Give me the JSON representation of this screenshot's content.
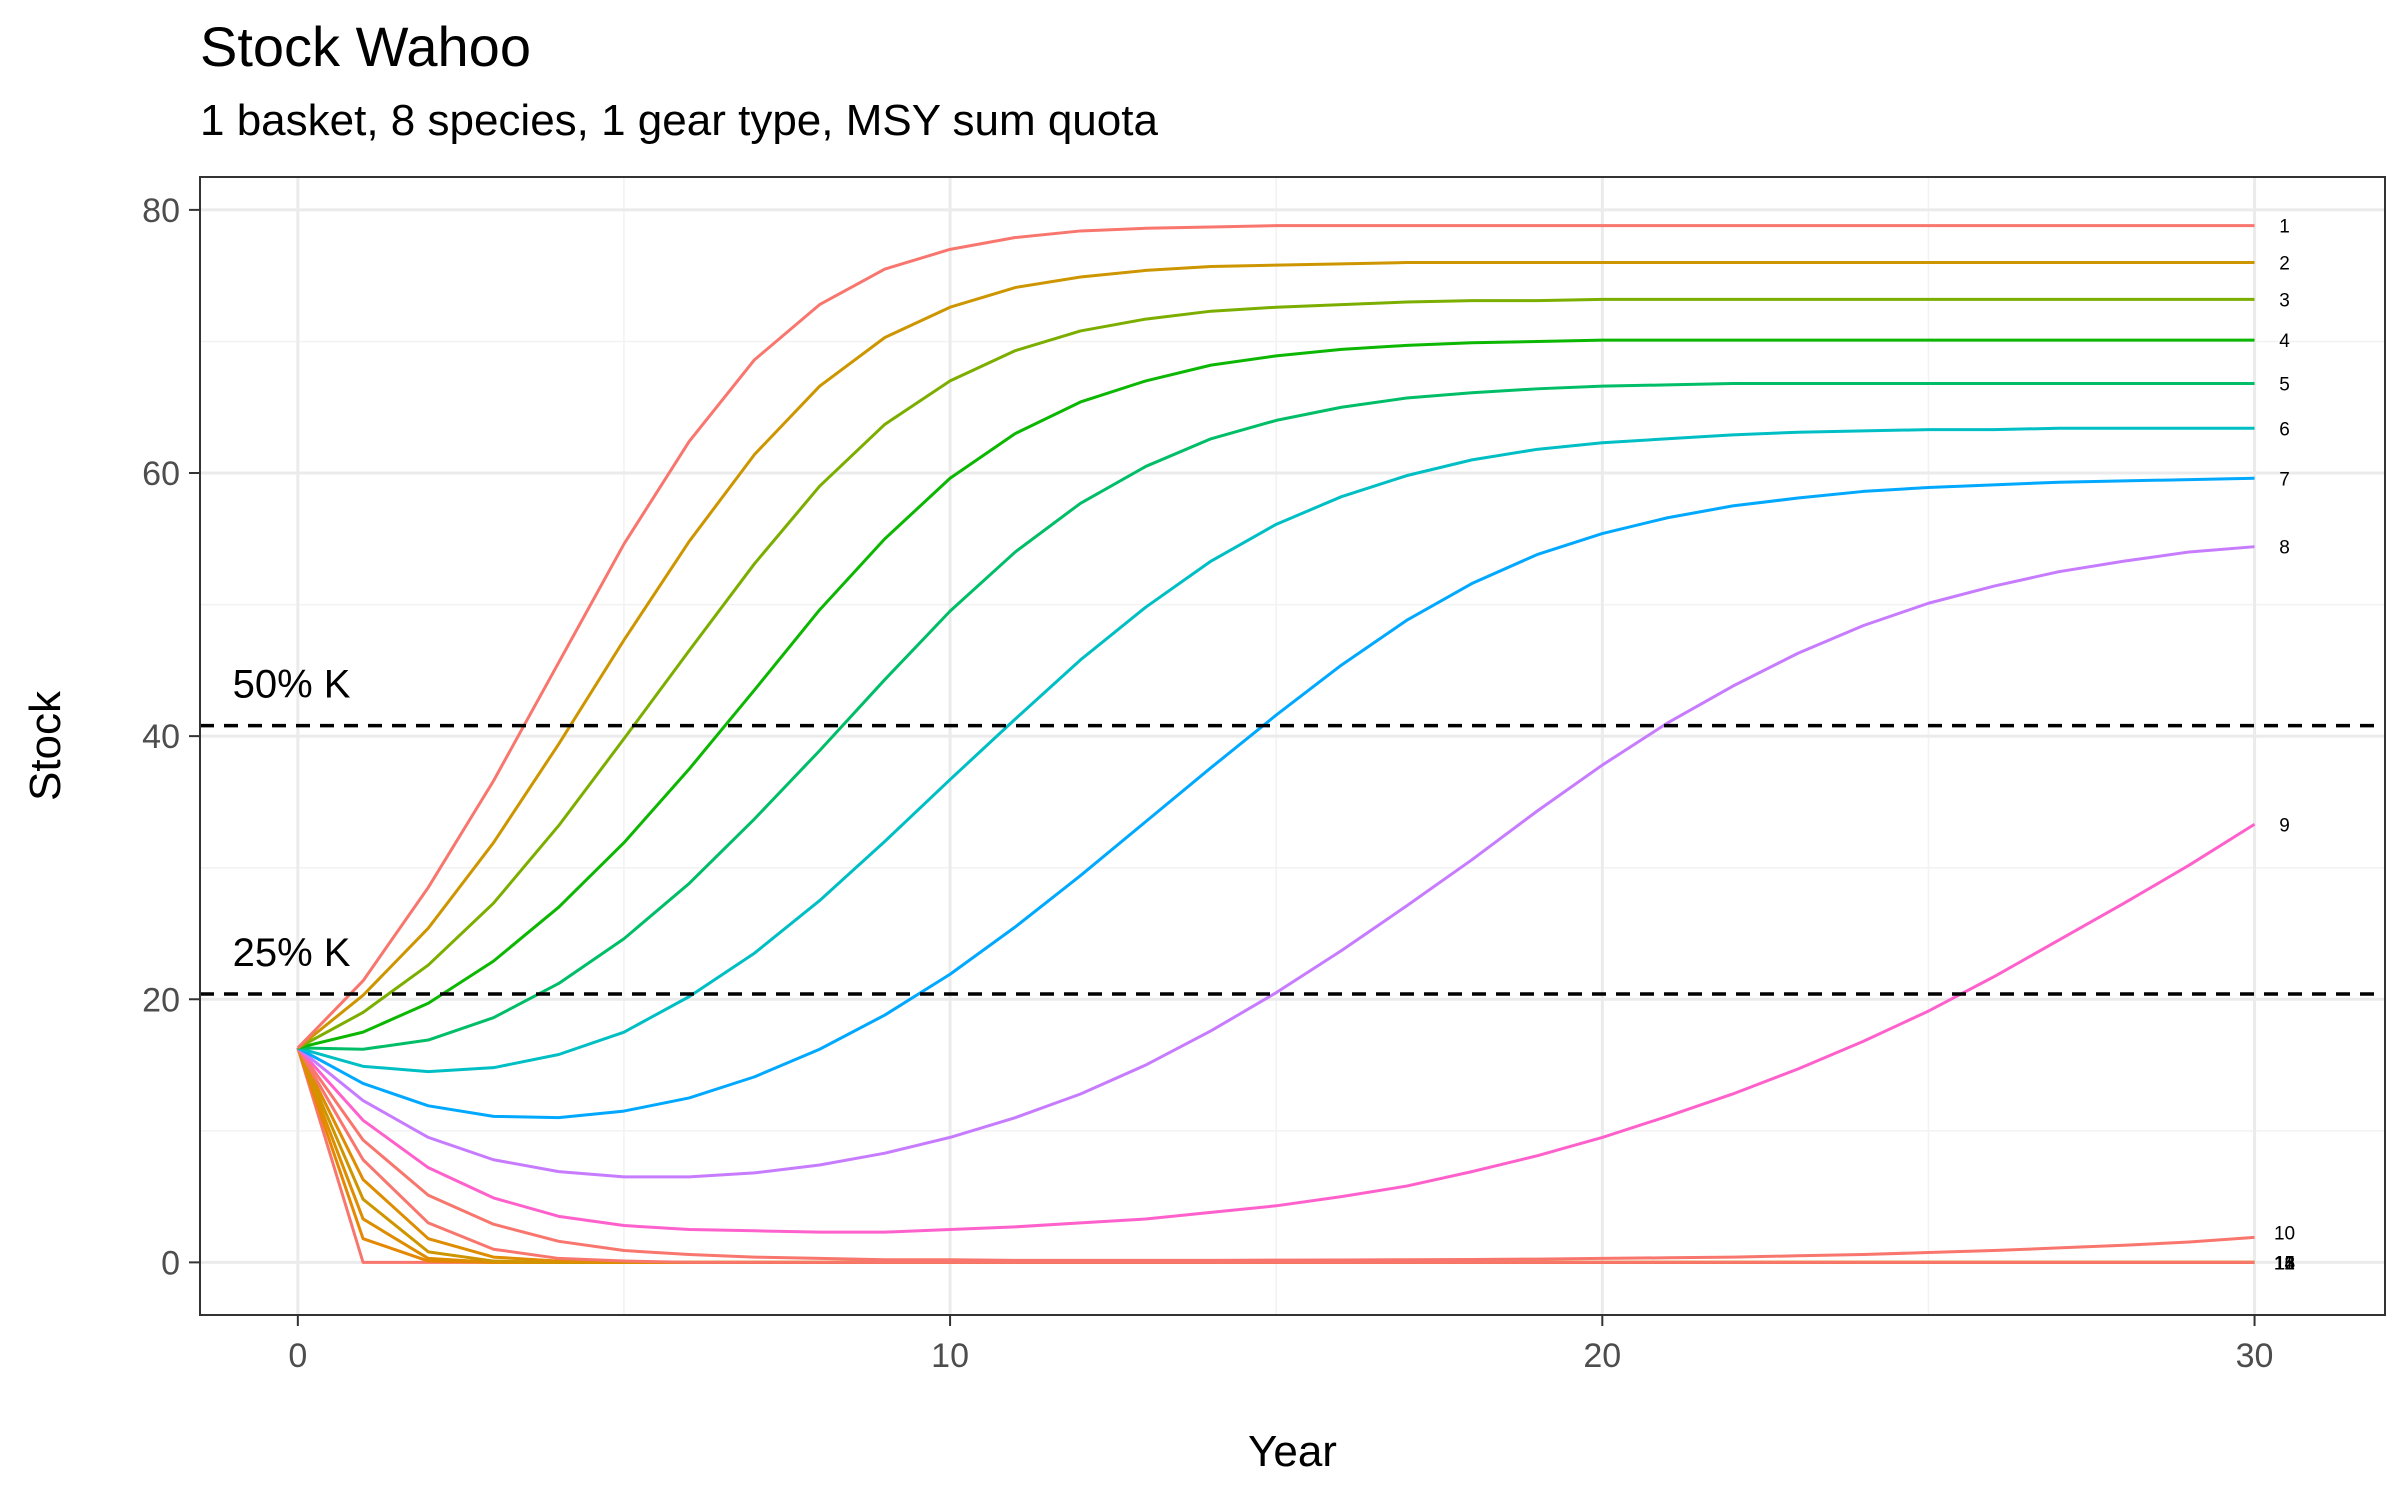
{
  "chart_data": {
    "type": "line",
    "title": "Stock Wahoo",
    "subtitle": "1 basket, 8 species, 1 gear type, MSY sum quota",
    "xlabel": "Year",
    "ylabel": "Stock",
    "xlim": [
      -1.5,
      32
    ],
    "ylim": [
      -4,
      82.5
    ],
    "x_ticks": [
      0,
      10,
      20,
      30
    ],
    "y_ticks": [
      0,
      20,
      40,
      60,
      80
    ],
    "grid": true,
    "legend": "none",
    "x": [
      0,
      1,
      2,
      3,
      4,
      5,
      6,
      7,
      8,
      9,
      10,
      11,
      12,
      13,
      14,
      15,
      16,
      17,
      18,
      19,
      20,
      21,
      22,
      23,
      24,
      25,
      26,
      27,
      28,
      29,
      30
    ],
    "reference_lines": [
      {
        "label": "50% K",
        "y": 40.8,
        "style": "dashed",
        "color": "#000000"
      },
      {
        "label": "25% K",
        "y": 20.4,
        "style": "dashed",
        "color": "#000000"
      }
    ],
    "series": [
      {
        "name": "1",
        "color": "#F8766D",
        "values": [
          16.3,
          21.4,
          28.5,
          36.6,
          45.6,
          54.6,
          62.4,
          68.6,
          72.8,
          75.5,
          77.0,
          77.9,
          78.4,
          78.6,
          78.7,
          78.8,
          78.8,
          78.8,
          78.8,
          78.8,
          78.8,
          78.8,
          78.8,
          78.8,
          78.8,
          78.8,
          78.8,
          78.8,
          78.8,
          78.8,
          78.8
        ]
      },
      {
        "name": "2",
        "color": "#CD9600",
        "values": [
          16.3,
          20.3,
          25.4,
          31.9,
          39.4,
          47.3,
          54.8,
          61.4,
          66.6,
          70.3,
          72.6,
          74.1,
          74.9,
          75.4,
          75.7,
          75.8,
          75.9,
          76.0,
          76.0,
          76.0,
          76.0,
          76.0,
          76.0,
          76.0,
          76.0,
          76.0,
          76.0,
          76.0,
          76.0,
          76.0,
          76.0
        ]
      },
      {
        "name": "3",
        "color": "#7CAE00",
        "values": [
          16.3,
          19.0,
          22.6,
          27.3,
          33.2,
          39.8,
          46.5,
          53.1,
          59.0,
          63.7,
          67.0,
          69.3,
          70.8,
          71.7,
          72.3,
          72.6,
          72.8,
          73.0,
          73.1,
          73.1,
          73.2,
          73.2,
          73.2,
          73.2,
          73.2,
          73.2,
          73.2,
          73.2,
          73.2,
          73.2,
          73.2
        ]
      },
      {
        "name": "4",
        "color": "#0CB702",
        "values": [
          16.3,
          17.5,
          19.7,
          22.9,
          27.0,
          31.9,
          37.5,
          43.5,
          49.6,
          55.0,
          59.6,
          63.0,
          65.4,
          67.0,
          68.2,
          68.9,
          69.4,
          69.7,
          69.9,
          70.0,
          70.1,
          70.1,
          70.1,
          70.1,
          70.1,
          70.1,
          70.1,
          70.1,
          70.1,
          70.1,
          70.1
        ]
      },
      {
        "name": "5",
        "color": "#00BE67",
        "values": [
          16.3,
          16.2,
          16.9,
          18.6,
          21.2,
          24.6,
          28.8,
          33.7,
          38.9,
          44.3,
          49.5,
          54.0,
          57.7,
          60.5,
          62.6,
          64.0,
          65.0,
          65.7,
          66.1,
          66.4,
          66.6,
          66.7,
          66.8,
          66.8,
          66.8,
          66.8,
          66.8,
          66.8,
          66.8,
          66.8,
          66.8
        ]
      },
      {
        "name": "6",
        "color": "#00BFC4",
        "values": [
          16.3,
          14.9,
          14.5,
          14.8,
          15.8,
          17.5,
          20.2,
          23.5,
          27.5,
          32.0,
          36.7,
          41.3,
          45.8,
          49.8,
          53.3,
          56.1,
          58.2,
          59.8,
          61.0,
          61.8,
          62.3,
          62.6,
          62.9,
          63.1,
          63.2,
          63.3,
          63.3,
          63.4,
          63.4,
          63.4,
          63.4
        ]
      },
      {
        "name": "7",
        "color": "#00A9FF",
        "values": [
          16.3,
          13.6,
          11.9,
          11.1,
          11.0,
          11.5,
          12.5,
          14.1,
          16.2,
          18.8,
          21.9,
          25.5,
          29.4,
          33.5,
          37.6,
          41.6,
          45.4,
          48.8,
          51.6,
          53.8,
          55.4,
          56.6,
          57.5,
          58.1,
          58.6,
          58.9,
          59.1,
          59.3,
          59.4,
          59.5,
          59.6
        ]
      },
      {
        "name": "8",
        "color": "#C77CFF",
        "values": [
          16.3,
          12.3,
          9.5,
          7.8,
          6.9,
          6.5,
          6.5,
          6.8,
          7.4,
          8.3,
          9.5,
          11.0,
          12.8,
          15.0,
          17.6,
          20.5,
          23.7,
          27.1,
          30.6,
          34.3,
          37.8,
          41.0,
          43.8,
          46.3,
          48.4,
          50.1,
          51.4,
          52.5,
          53.3,
          54.0,
          54.4
        ]
      },
      {
        "name": "9",
        "color": "#FF61CC",
        "values": [
          16.3,
          10.8,
          7.2,
          4.9,
          3.5,
          2.8,
          2.5,
          2.4,
          2.3,
          2.3,
          2.5,
          2.7,
          3.0,
          3.3,
          3.8,
          4.3,
          5.0,
          5.8,
          6.9,
          8.1,
          9.5,
          11.1,
          12.8,
          14.7,
          16.8,
          19.1,
          21.7,
          24.5,
          27.3,
          30.2,
          33.3
        ]
      },
      {
        "name": "10",
        "color": "#F8766D",
        "values": [
          16.3,
          9.3,
          5.1,
          2.9,
          1.6,
          0.9,
          0.6,
          0.4,
          0.3,
          0.2,
          0.2,
          0.15,
          0.15,
          0.15,
          0.15,
          0.17,
          0.18,
          0.2,
          0.22,
          0.25,
          0.3,
          0.35,
          0.4,
          0.5,
          0.6,
          0.75,
          0.9,
          1.1,
          1.3,
          1.55,
          1.9
        ]
      },
      {
        "name": "11",
        "color": "#F8766D",
        "values": [
          16.3,
          7.8,
          3.0,
          1.0,
          0.3,
          0.1,
          0,
          0,
          0,
          0,
          0,
          0,
          0,
          0,
          0,
          0,
          0,
          0,
          0,
          0,
          0,
          0,
          0,
          0,
          0,
          0,
          0,
          0,
          0,
          0,
          0
        ]
      },
      {
        "name": "12",
        "color": "#DE8C00",
        "values": [
          16.3,
          6.3,
          1.8,
          0.4,
          0.1,
          0,
          0,
          0,
          0,
          0,
          0,
          0,
          0,
          0,
          0,
          0,
          0,
          0,
          0,
          0,
          0,
          0,
          0,
          0,
          0,
          0,
          0,
          0,
          0,
          0,
          0
        ]
      },
      {
        "name": "13",
        "color": "#CD9600",
        "values": [
          16.3,
          4.8,
          0.8,
          0.1,
          0,
          0,
          0,
          0,
          0,
          0,
          0,
          0,
          0,
          0,
          0,
          0,
          0,
          0,
          0,
          0,
          0,
          0,
          0,
          0,
          0,
          0,
          0,
          0,
          0,
          0,
          0
        ]
      },
      {
        "name": "14",
        "color": "#DE8C00",
        "values": [
          16.3,
          3.3,
          0.3,
          0,
          0,
          0,
          0,
          0,
          0,
          0,
          0,
          0,
          0,
          0,
          0,
          0,
          0,
          0,
          0,
          0,
          0,
          0,
          0,
          0,
          0,
          0,
          0,
          0,
          0,
          0,
          0
        ]
      },
      {
        "name": "15",
        "color": "#E58700",
        "values": [
          16.3,
          1.8,
          0.1,
          0,
          0,
          0,
          0,
          0,
          0,
          0,
          0,
          0,
          0,
          0,
          0,
          0,
          0,
          0,
          0,
          0,
          0,
          0,
          0,
          0,
          0,
          0,
          0,
          0,
          0,
          0,
          0
        ]
      },
      {
        "name": "16",
        "color": "#F8766D",
        "values": [
          16.3,
          0,
          0,
          0,
          0,
          0,
          0,
          0,
          0,
          0,
          0,
          0,
          0,
          0,
          0,
          0,
          0,
          0,
          0,
          0,
          0,
          0,
          0,
          0,
          0,
          0,
          0,
          0,
          0,
          0,
          0
        ]
      }
    ],
    "end_labels": [
      "1",
      "2",
      "3",
      "4",
      "5",
      "6",
      "7",
      "8",
      "9",
      "10",
      "11",
      "12",
      "13",
      "14",
      "15",
      "16"
    ]
  }
}
